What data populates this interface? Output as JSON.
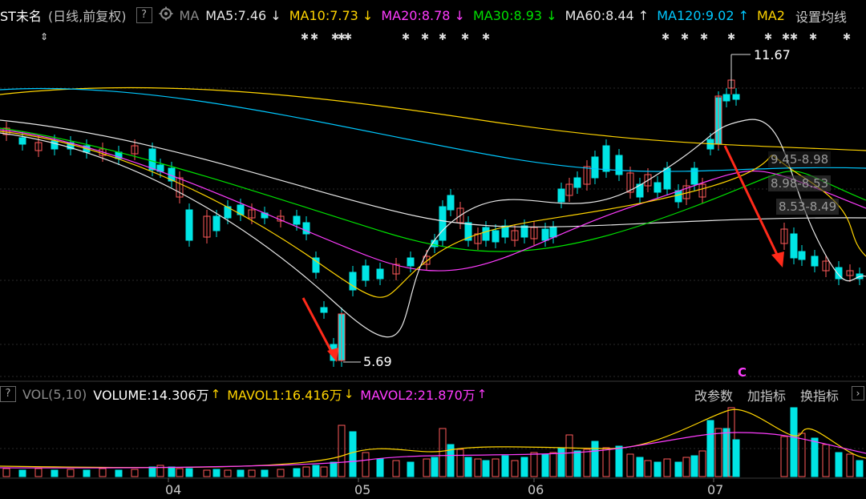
{
  "header": {
    "stock_name": "ST未名",
    "period_info": "(日线,前复权)",
    "help_label": "?",
    "ma_label": "MA",
    "ma_items": [
      {
        "label": "MA5:7.46",
        "arrow": "↓",
        "color": "#e8e8e8"
      },
      {
        "label": "MA10:7.73",
        "arrow": "↓",
        "color": "#ffd400"
      },
      {
        "label": "MA20:8.78",
        "arrow": "↓",
        "color": "#ff3cff"
      },
      {
        "label": "MA30:8.93",
        "arrow": "↓",
        "color": "#00e000"
      },
      {
        "label": "MA60:8.44",
        "arrow": "↑",
        "color": "#e8e8e8"
      },
      {
        "label": "MA120:9.02",
        "arrow": "↑",
        "color": "#00c8ff"
      },
      {
        "label": "MA2",
        "arrow": "",
        "color": "#ffd400"
      }
    ],
    "settings_label": "设置均线"
  },
  "price_labels": {
    "high": "11.67",
    "low": "5.69",
    "ranges": [
      "9.45-8.98",
      "8.98-8.53",
      "8.53-8.49"
    ]
  },
  "marker_c": "C",
  "volume": {
    "toggle_label": "?",
    "title": "VOL(5,10)",
    "volume": "VOLUME:14.306万",
    "volume_arrow": "↑",
    "mavol1": "MAVOL1:16.416万",
    "mavol1_arrow": "↓",
    "mavol2": "MAVOL2:21.870万",
    "mavol2_arrow": "↑"
  },
  "menu": {
    "params": "改参数",
    "add_indicator": "加指标",
    "switch_indicator": "换指标"
  },
  "x_axis": [
    "04",
    "05",
    "06",
    "07"
  ],
  "colors": {
    "up": "#ff5a5a",
    "down": "#00e5e5",
    "ma5": "#e8e8e8",
    "ma10": "#ffd400",
    "ma20": "#ff3cff",
    "ma30": "#00e000",
    "ma60": "#e8e8e8",
    "ma120": "#00c8ff",
    "ma250": "#ffd400",
    "arrow": "#ff2a1a"
  }
}
